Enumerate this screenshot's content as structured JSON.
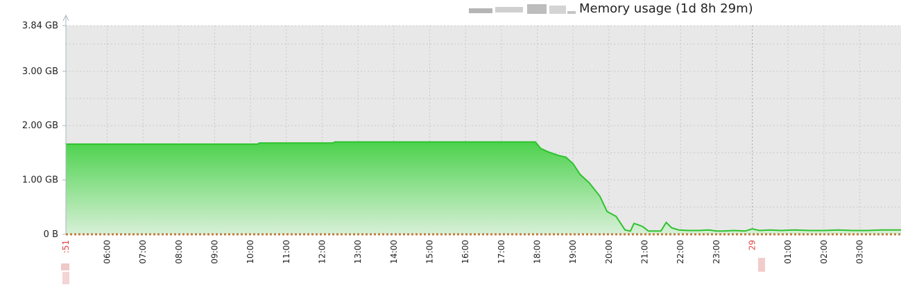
{
  "header": {
    "title": "Memory usage (1d 8h 29m)"
  },
  "chart_data": {
    "type": "area",
    "title": "Memory usage (1d 8h 29m)",
    "xlabel": "",
    "ylabel": "",
    "y_tick_labels": [
      "0 B",
      "1.00 GB",
      "2.00 GB",
      "3.00 GB",
      "3.84 GB"
    ],
    "y_tick_values": [
      0,
      1.0,
      2.0,
      3.0,
      3.84
    ],
    "ylim": [
      0,
      3.84
    ],
    "x_tick_labels": [
      ":51",
      "06:00",
      "07:00",
      "08:00",
      "09:00",
      "10:00",
      "11:00",
      "12:00",
      "13:00",
      "14:00",
      "15:00",
      "16:00",
      "17:00",
      "18:00",
      "19:00",
      "20:00",
      "21:00",
      "22:00",
      "23:00",
      "29",
      "01:00",
      "02:00",
      "03:00"
    ],
    "x_tick_hours": [
      4.85,
      6,
      7,
      8,
      9,
      10,
      11,
      12,
      13,
      14,
      15,
      16,
      17,
      18,
      19,
      20,
      21,
      22,
      23,
      24,
      25,
      26,
      27
    ],
    "x_tick_highlight": [
      ":51",
      "29"
    ],
    "xlim_hours": [
      4.85,
      28.15
    ],
    "series": [
      {
        "name": "",
        "color": "#2ec12e",
        "x_hours": [
          4.85,
          10.2,
          10.25,
          12.3,
          12.35,
          17.95,
          18.1,
          18.3,
          18.6,
          18.8,
          19.0,
          19.2,
          19.45,
          19.75,
          19.95,
          20.2,
          20.45,
          20.6,
          20.7,
          20.8,
          20.95,
          21.1,
          21.3,
          21.45,
          21.6,
          21.75,
          21.95,
          22.2,
          22.5,
          22.8,
          23.0,
          23.2,
          23.5,
          23.8,
          24.0,
          24.2,
          24.5,
          24.8,
          25.2,
          25.6,
          26.0,
          26.4,
          26.8,
          27.2,
          27.6,
          28.15
        ],
        "values_gb": [
          1.66,
          1.66,
          1.68,
          1.68,
          1.7,
          1.7,
          1.58,
          1.52,
          1.45,
          1.42,
          1.3,
          1.1,
          0.95,
          0.7,
          0.42,
          0.33,
          0.08,
          0.06,
          0.2,
          0.18,
          0.14,
          0.06,
          0.06,
          0.06,
          0.22,
          0.12,
          0.08,
          0.07,
          0.07,
          0.08,
          0.06,
          0.06,
          0.07,
          0.06,
          0.1,
          0.07,
          0.08,
          0.07,
          0.08,
          0.07,
          0.07,
          0.08,
          0.07,
          0.07,
          0.08,
          0.08
        ]
      }
    ],
    "grid": true,
    "plot_background": "#e8e8e8",
    "gridline_color": "#c8c8c8",
    "fill_gradient": [
      "#4cd24c",
      "#d8f0d8"
    ],
    "baseline_color": "#c07a3a"
  }
}
